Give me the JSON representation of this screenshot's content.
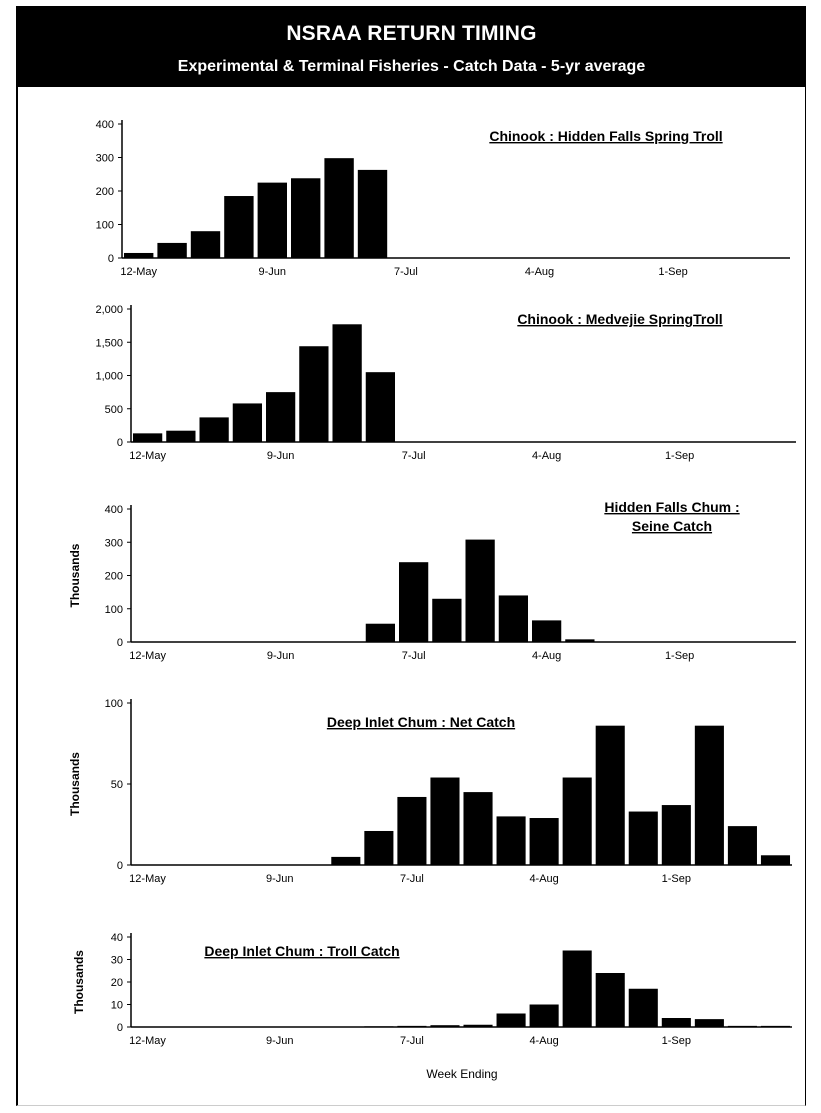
{
  "header": {
    "title": "NSRAA RETURN TIMING",
    "subtitle": "Experimental & Terminal Fisheries - Catch Data - 5-yr average"
  },
  "colors": {
    "bar": "#000000",
    "header_bg": "#000000",
    "header_text": "#ffffff"
  },
  "chart_data": [
    {
      "type": "bar",
      "title": "Chinook : Hidden Falls Spring Troll",
      "ylabel": "",
      "xlabel": "",
      "ylim": [
        0,
        400
      ],
      "yticks": [
        "400",
        "300",
        "200",
        "100",
        "0"
      ],
      "x_tick_labels": [
        "12-May",
        "9-Jun",
        "7-Jul",
        "4-Aug",
        "1-Sep"
      ],
      "values": [
        15,
        45,
        80,
        185,
        225,
        238,
        298,
        263,
        0,
        0,
        0,
        0,
        0,
        0,
        0,
        0,
        0,
        0,
        0,
        0
      ]
    },
    {
      "type": "bar",
      "title": "Chinook : Medvejie SpringTroll",
      "ylabel": "",
      "xlabel": "",
      "ylim": [
        0,
        2000
      ],
      "yticks": [
        "2,000",
        "1,500",
        "1,000",
        "500",
        "0"
      ],
      "x_tick_labels": [
        "12-May",
        "9-Jun",
        "7-Jul",
        "4-Aug",
        "1-Sep"
      ],
      "values": [
        130,
        170,
        370,
        580,
        750,
        1440,
        1770,
        1050,
        0,
        0,
        0,
        0,
        0,
        0,
        0,
        0,
        0,
        0,
        0,
        0
      ]
    },
    {
      "type": "bar",
      "title": "Hidden Falls Chum :",
      "title_line2": "Seine Catch",
      "ylabel": "Thousands",
      "xlabel": "",
      "ylim": [
        0,
        400
      ],
      "yticks": [
        "400",
        "300",
        "200",
        "100",
        "0"
      ],
      "x_tick_labels": [
        "12-May",
        "9-Jun",
        "7-Jul",
        "4-Aug",
        "1-Sep"
      ],
      "values": [
        0,
        0,
        0,
        0,
        0,
        0,
        0,
        55,
        240,
        130,
        308,
        140,
        65,
        8,
        1,
        0,
        0,
        0,
        0,
        0
      ]
    },
    {
      "type": "bar",
      "title": "Deep Inlet Chum : Net Catch",
      "ylabel": "Thousands",
      "xlabel": "",
      "ylim": [
        0,
        100
      ],
      "yticks": [
        "100",
        "50",
        "0"
      ],
      "x_tick_labels": [
        "12-May",
        "9-Jun",
        "7-Jul",
        "4-Aug",
        "1-Sep"
      ],
      "values": [
        0,
        0,
        0,
        0,
        0,
        0,
        5,
        21,
        42,
        54,
        45,
        30,
        29,
        54,
        86,
        33,
        37,
        86,
        24,
        6
      ]
    },
    {
      "type": "bar",
      "title": "Deep Inlet Chum : Troll Catch",
      "ylabel": "Thousands",
      "xlabel": "Week Ending",
      "ylim": [
        0,
        40
      ],
      "yticks": [
        "40",
        "30",
        "20",
        "10",
        "0"
      ],
      "x_tick_labels": [
        "12-May",
        "9-Jun",
        "7-Jul",
        "4-Aug",
        "1-Sep"
      ],
      "values": [
        0,
        0,
        0,
        0,
        0,
        0,
        0,
        0.3,
        0.5,
        0.8,
        1,
        6,
        10,
        34,
        24,
        17,
        4,
        3.5,
        0.5,
        0.5
      ]
    }
  ]
}
